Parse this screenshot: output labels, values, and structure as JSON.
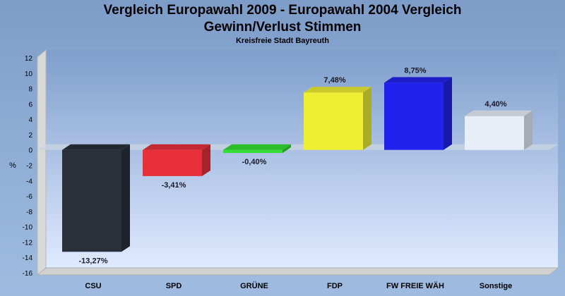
{
  "chart_data": {
    "type": "bar",
    "title": "Vergleich Europawahl 2009 - Europawahl 2004 Vergleich",
    "title2": "Gewinn/Verlust Stimmen",
    "subtitle": "Kreisfreie Stadt Bayreuth",
    "ylabel": "%",
    "ylim": [
      -16,
      12
    ],
    "yticks": [
      12,
      10,
      8,
      6,
      4,
      2,
      0,
      -2,
      -4,
      -6,
      -8,
      -10,
      -12,
      -14,
      -16
    ],
    "categories": [
      "CSU",
      "SPD",
      "GRÜNE",
      "FDP",
      "FW FREIE WÄH",
      "Sonstige"
    ],
    "values": [
      -13.27,
      -3.41,
      -0.4,
      7.48,
      8.75,
      4.4
    ],
    "value_labels": [
      "-13,27%",
      "-3,41%",
      "-0,40%",
      "7,48%",
      "8,75%",
      "4,40%"
    ],
    "colors": [
      "#2a2f3a",
      "#e8303a",
      "#33dd33",
      "#eeee33",
      "#2222ee",
      "#e8eef8"
    ],
    "grid": false,
    "legend": "none"
  }
}
